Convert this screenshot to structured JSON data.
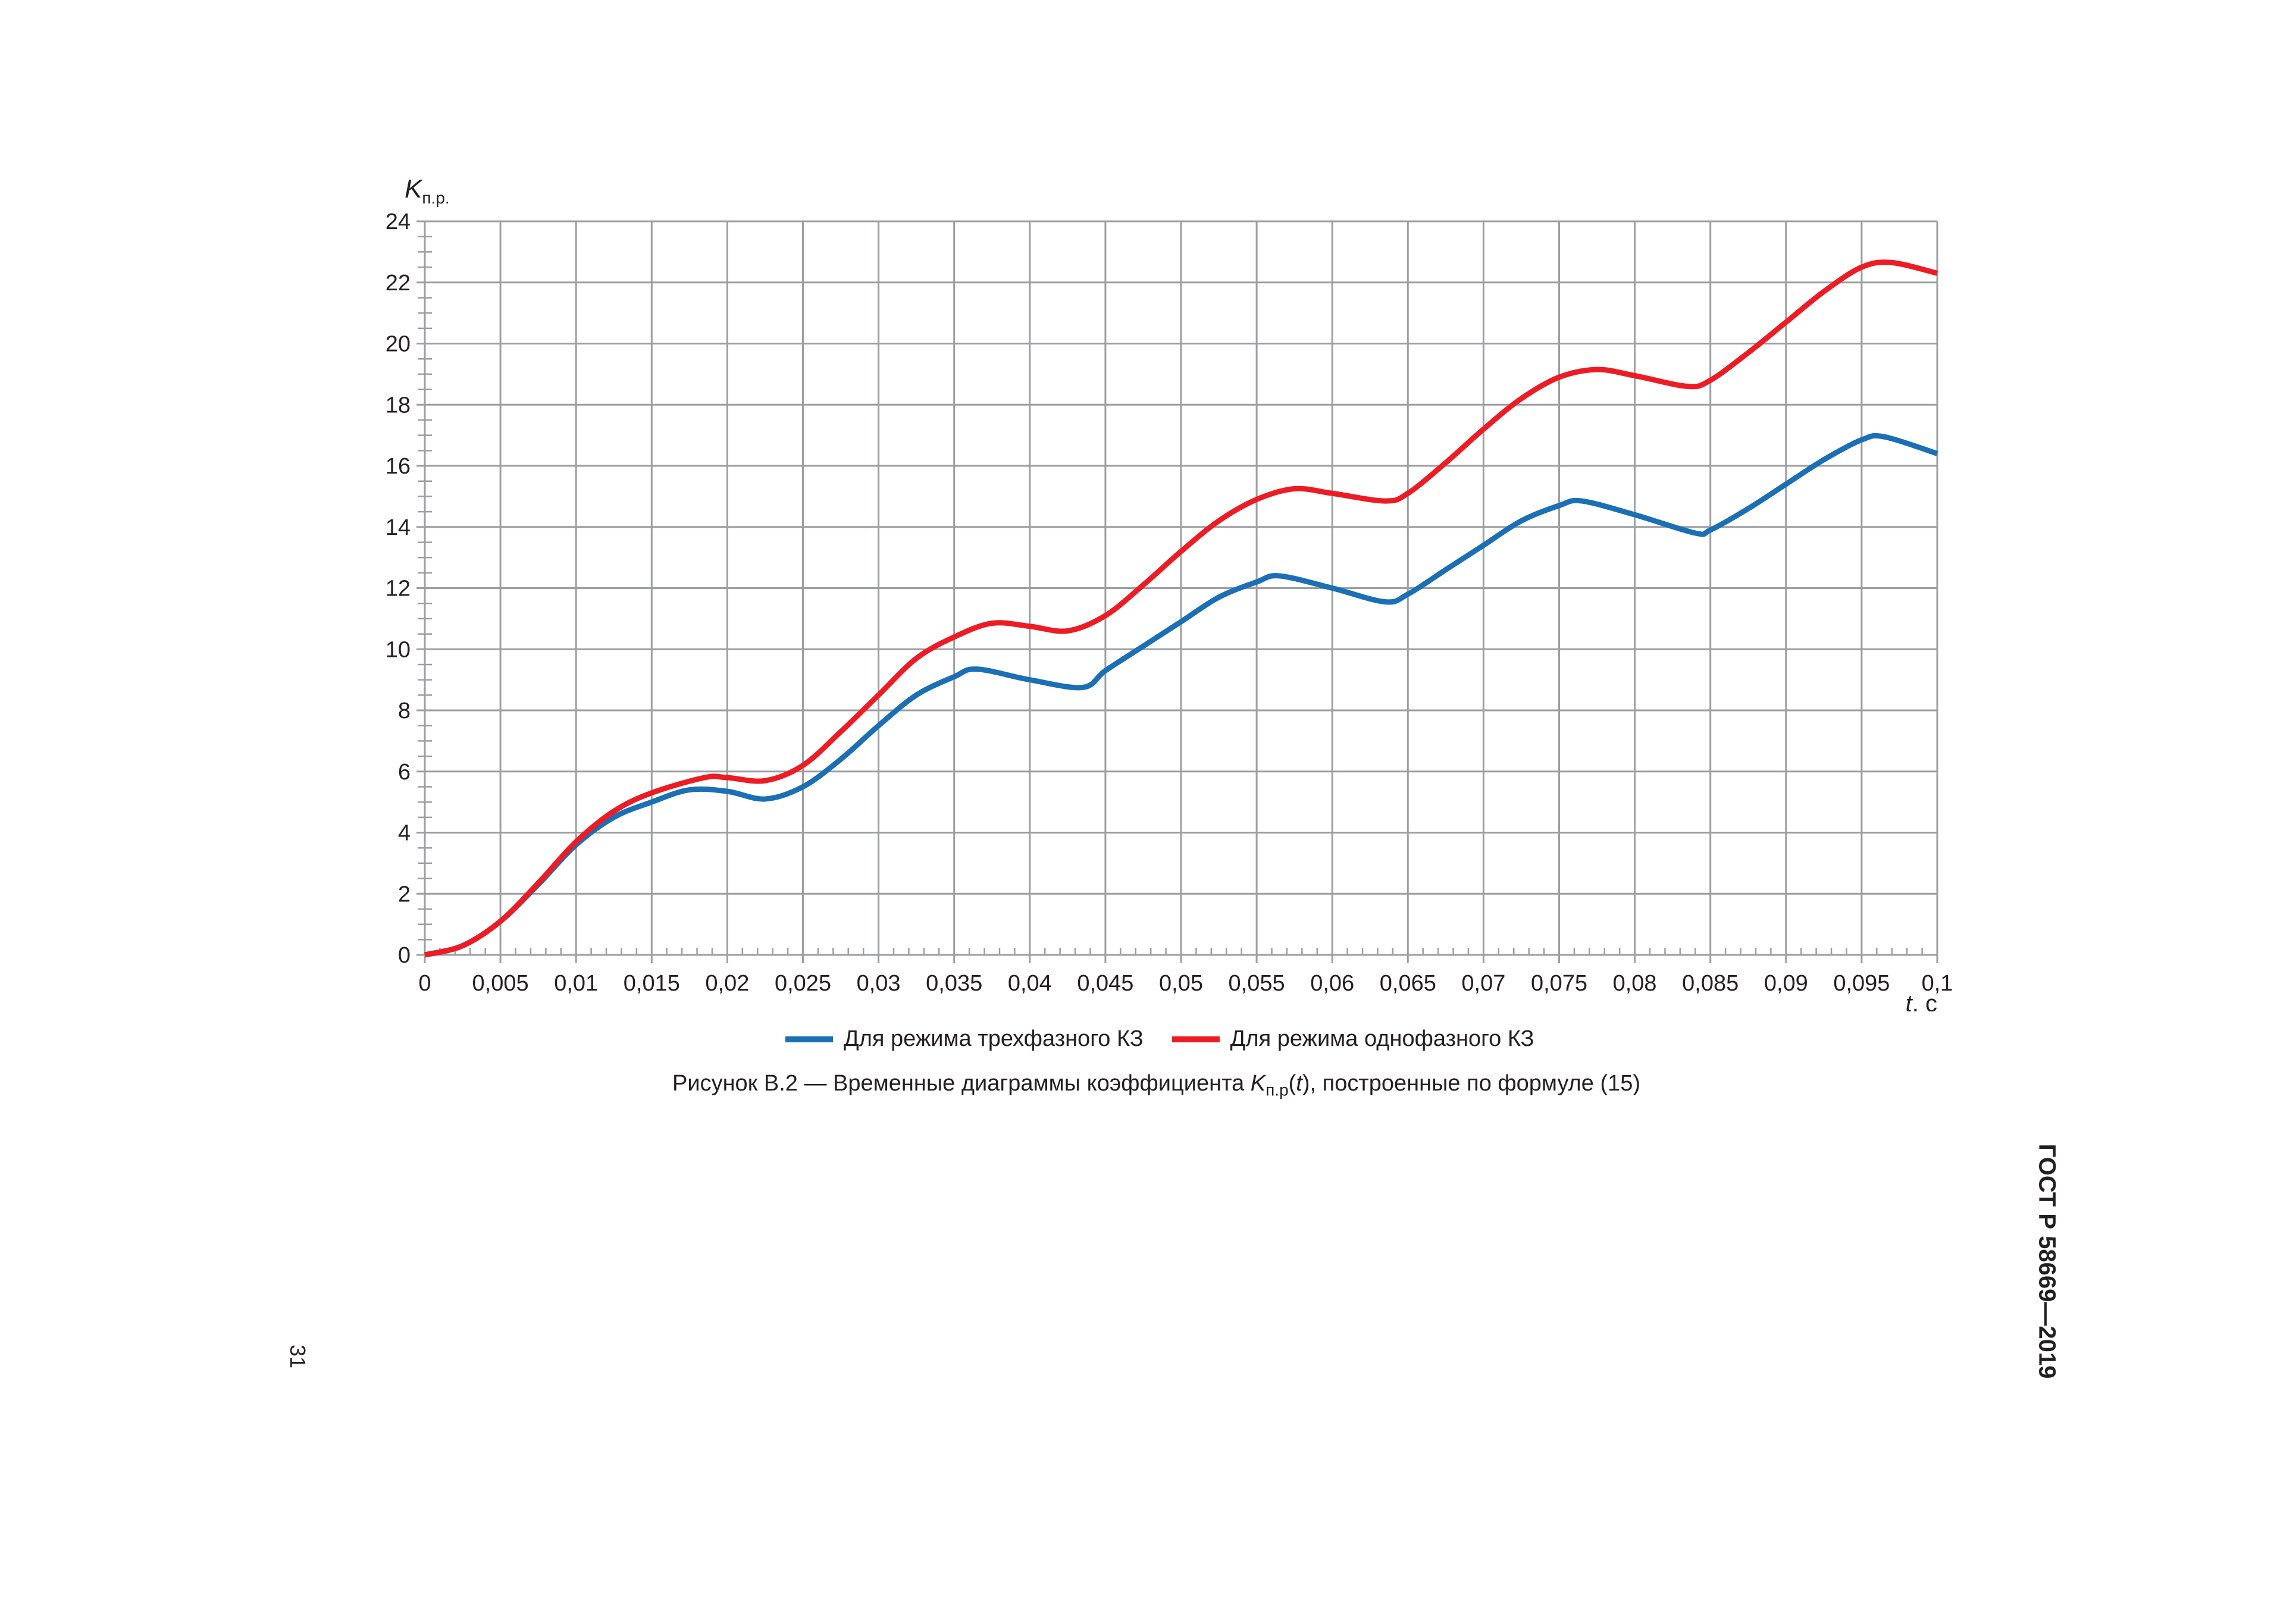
{
  "chart_data": {
    "type": "line",
    "title": "",
    "ylabel": "K п.р.",
    "ylabel_main": "K",
    "ylabel_sub": "п.р.",
    "xlabel": "t, c",
    "xlabel_var": "t",
    "xlabel_unit": ", c",
    "xlim": [
      0,
      0.1
    ],
    "ylim": [
      0,
      24
    ],
    "grid": true,
    "legend_position": "bottom",
    "x_ticks": [
      0,
      0.005,
      0.01,
      0.015,
      0.02,
      0.025,
      0.03,
      0.035,
      0.04,
      0.045,
      0.05,
      0.055,
      0.06,
      0.065,
      0.07,
      0.075,
      0.08,
      0.085,
      0.09,
      0.095,
      0.1
    ],
    "x_tick_labels": [
      "0",
      "0,005",
      "0,01",
      "0,015",
      "0,02",
      "0,025",
      "0,03",
      "0,035",
      "0,04",
      "0,045",
      "0,05",
      "0,055",
      "0,06",
      "0,065",
      "0,07",
      "0,075",
      "0,08",
      "0,085",
      "0,09",
      "0,095",
      "0,1"
    ],
    "y_ticks": [
      0,
      2,
      4,
      6,
      8,
      10,
      12,
      14,
      16,
      18,
      20,
      22,
      24
    ],
    "y_tick_labels": [
      "0",
      "2",
      "4",
      "6",
      "8",
      "10",
      "12",
      "14",
      "16",
      "18",
      "20",
      "22",
      "24"
    ],
    "series": [
      {
        "name": "Для режима трехфазного КЗ",
        "color": "#1a6fb5",
        "x": [
          0,
          0.0025,
          0.005,
          0.0075,
          0.01,
          0.0125,
          0.015,
          0.0175,
          0.02,
          0.0225,
          0.025,
          0.0275,
          0.03,
          0.0325,
          0.035,
          0.0365,
          0.04,
          0.0435,
          0.045,
          0.0475,
          0.05,
          0.0525,
          0.055,
          0.0565,
          0.06,
          0.0635,
          0.065,
          0.0675,
          0.07,
          0.0725,
          0.075,
          0.0765,
          0.08,
          0.084,
          0.085,
          0.0875,
          0.09,
          0.0925,
          0.095,
          0.0965,
          0.1
        ],
        "values": [
          0,
          0.3,
          1.1,
          2.3,
          3.6,
          4.5,
          5.0,
          5.4,
          5.35,
          5.1,
          5.5,
          6.4,
          7.5,
          8.5,
          9.1,
          9.35,
          9.0,
          8.75,
          9.3,
          10.1,
          10.9,
          11.7,
          12.2,
          12.4,
          12.0,
          11.55,
          11.8,
          12.6,
          13.4,
          14.2,
          14.7,
          14.85,
          14.4,
          13.8,
          13.9,
          14.6,
          15.4,
          16.2,
          16.85,
          16.95,
          16.4
        ]
      },
      {
        "name": "Для режима однофазного КЗ",
        "color": "#ed1c24",
        "x": [
          0,
          0.0025,
          0.005,
          0.0075,
          0.01,
          0.0125,
          0.015,
          0.0185,
          0.02,
          0.0225,
          0.025,
          0.0275,
          0.03,
          0.0325,
          0.035,
          0.0375,
          0.04,
          0.0425,
          0.045,
          0.0475,
          0.05,
          0.0525,
          0.055,
          0.0575,
          0.06,
          0.0635,
          0.065,
          0.0675,
          0.07,
          0.0725,
          0.075,
          0.0775,
          0.08,
          0.0835,
          0.085,
          0.0875,
          0.09,
          0.0925,
          0.095,
          0.097,
          0.1
        ],
        "values": [
          0,
          0.3,
          1.1,
          2.35,
          3.7,
          4.7,
          5.3,
          5.8,
          5.8,
          5.7,
          6.2,
          7.3,
          8.5,
          9.7,
          10.4,
          10.85,
          10.75,
          10.6,
          11.1,
          12.1,
          13.2,
          14.2,
          14.9,
          15.25,
          15.1,
          14.85,
          15.1,
          16.1,
          17.2,
          18.2,
          18.9,
          19.15,
          18.95,
          18.6,
          18.8,
          19.7,
          20.7,
          21.7,
          22.5,
          22.65,
          22.3
        ]
      }
    ]
  },
  "legend": {
    "items": [
      {
        "label": "Для режима трехфазного КЗ",
        "color": "#1a6fb5"
      },
      {
        "label": "Для режима однофазного КЗ",
        "color": "#ed1c24"
      }
    ]
  },
  "caption": {
    "prefix": "Рисунок В.2 — Временные диаграммы коэффициента ",
    "symbol": "K",
    "symbol_sub": "п.р",
    "arg_open": "(",
    "arg": "t",
    "suffix": "), построенные по формуле (15)"
  },
  "document": {
    "standard_id": "ГОСТ Р 58669—2019",
    "page_number": "31"
  },
  "style": {
    "grid_color": "#9d9ea2",
    "text_color": "#231f20"
  }
}
